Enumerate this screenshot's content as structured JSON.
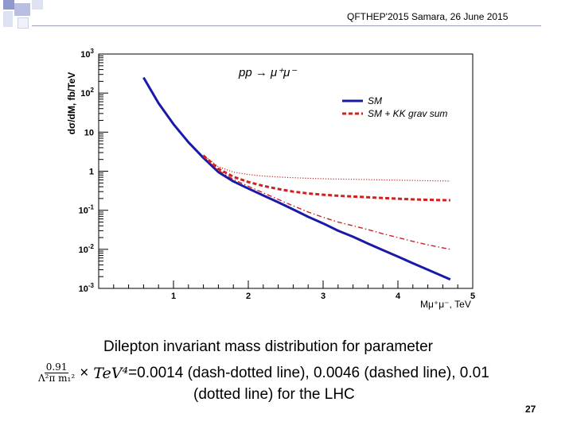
{
  "slide": {
    "header": "QFTHEP'2015 Samara,  26 June 2015",
    "page_number": "27",
    "accent_colors": [
      "#b9bfe3",
      "#8f98cc",
      "#dfe2f3",
      "#f0f1fa"
    ]
  },
  "caption": {
    "line1": "Dilepton invariant mass distribution for parameter",
    "fraction_num": "0.91",
    "fraction_den": "Λ²π m₁²",
    "times": "×",
    "unit": "TeV⁴",
    "line2_rest": "=0.0014 (dash-dotted line), 0.0046 (dashed line), 0.01",
    "line3": "(dotted line) for the LHC"
  },
  "chart_data": {
    "type": "line",
    "title": "pp → μ⁺μ⁻",
    "xlabel": "Mμ⁺μ⁻, TeV",
    "ylabel": "dσ/dM, fb/TeV",
    "xlim": [
      0,
      5
    ],
    "ylim": [
      0.001,
      1000
    ],
    "yscale": "log",
    "xticks": [
      {
        "v": 1,
        "label": "1"
      },
      {
        "v": 2,
        "label": "2"
      },
      {
        "v": 3,
        "label": "3"
      },
      {
        "v": 4,
        "label": "4"
      },
      {
        "v": 5,
        "label": "5"
      }
    ],
    "yticks": [
      {
        "v": 1000,
        "base": "10",
        "exp": "3"
      },
      {
        "v": 100,
        "base": "10",
        "exp": "2"
      },
      {
        "v": 10,
        "base": "10",
        "exp": ""
      },
      {
        "v": 1,
        "base": "1",
        "exp": ""
      },
      {
        "v": 0.1,
        "base": "10",
        "exp": "-1"
      },
      {
        "v": 0.01,
        "base": "10",
        "exp": "-2"
      },
      {
        "v": 0.001,
        "base": "10",
        "exp": "-3"
      }
    ],
    "legend": [
      {
        "label": "SM",
        "style": "solid",
        "color": "#1a1aa8"
      },
      {
        "label": "SM + KK grav sum",
        "style": "dashed",
        "color": "#cc2222"
      }
    ],
    "series": [
      {
        "name": "SM",
        "style": "solid",
        "color": "#1a1aa8",
        "x": [
          0.6,
          0.8,
          1.0,
          1.2,
          1.4,
          1.6,
          1.8,
          2.0,
          2.2,
          2.4,
          2.6,
          2.8,
          3.0,
          3.2,
          3.4,
          3.6,
          3.8,
          4.0,
          4.2,
          4.4,
          4.7
        ],
        "y": [
          250,
          55,
          16,
          5.5,
          2.2,
          0.95,
          0.55,
          0.36,
          0.24,
          0.16,
          0.105,
          0.068,
          0.046,
          0.03,
          0.021,
          0.014,
          0.0095,
          0.0065,
          0.0044,
          0.003,
          0.0017
        ]
      },
      {
        "name": "SM + KK grav sum (0.0014, dash-dotted)",
        "style": "dashdot",
        "color": "#cc2222",
        "x": [
          1.4,
          1.6,
          1.8,
          2.0,
          2.2,
          2.4,
          2.6,
          2.8,
          3.0,
          3.2,
          3.4,
          3.6,
          3.8,
          4.0,
          4.2,
          4.4,
          4.7
        ],
        "y": [
          2.4,
          1.05,
          0.62,
          0.41,
          0.28,
          0.19,
          0.13,
          0.09,
          0.066,
          0.05,
          0.04,
          0.032,
          0.025,
          0.02,
          0.016,
          0.013,
          0.01
        ]
      },
      {
        "name": "SM + KK grav sum (0.0046, dashed)",
        "style": "dashed",
        "color": "#cc2222",
        "x": [
          1.4,
          1.6,
          1.8,
          2.0,
          2.2,
          2.4,
          2.6,
          2.8,
          3.0,
          3.2,
          3.4,
          3.6,
          3.8,
          4.0,
          4.2,
          4.4,
          4.7
        ],
        "y": [
          2.5,
          1.15,
          0.72,
          0.53,
          0.42,
          0.35,
          0.3,
          0.27,
          0.25,
          0.235,
          0.225,
          0.215,
          0.205,
          0.198,
          0.19,
          0.185,
          0.18
        ]
      },
      {
        "name": "SM + KK grav sum (0.01, dotted)",
        "style": "dotted",
        "color": "#cc2222",
        "x": [
          1.4,
          1.6,
          1.8,
          2.0,
          2.2,
          2.4,
          2.6,
          2.8,
          3.0,
          3.2,
          3.4,
          3.6,
          3.8,
          4.0,
          4.2,
          4.4,
          4.7
        ],
        "y": [
          2.6,
          1.3,
          0.95,
          0.82,
          0.75,
          0.71,
          0.68,
          0.66,
          0.64,
          0.63,
          0.62,
          0.61,
          0.6,
          0.59,
          0.58,
          0.57,
          0.56
        ]
      }
    ]
  }
}
